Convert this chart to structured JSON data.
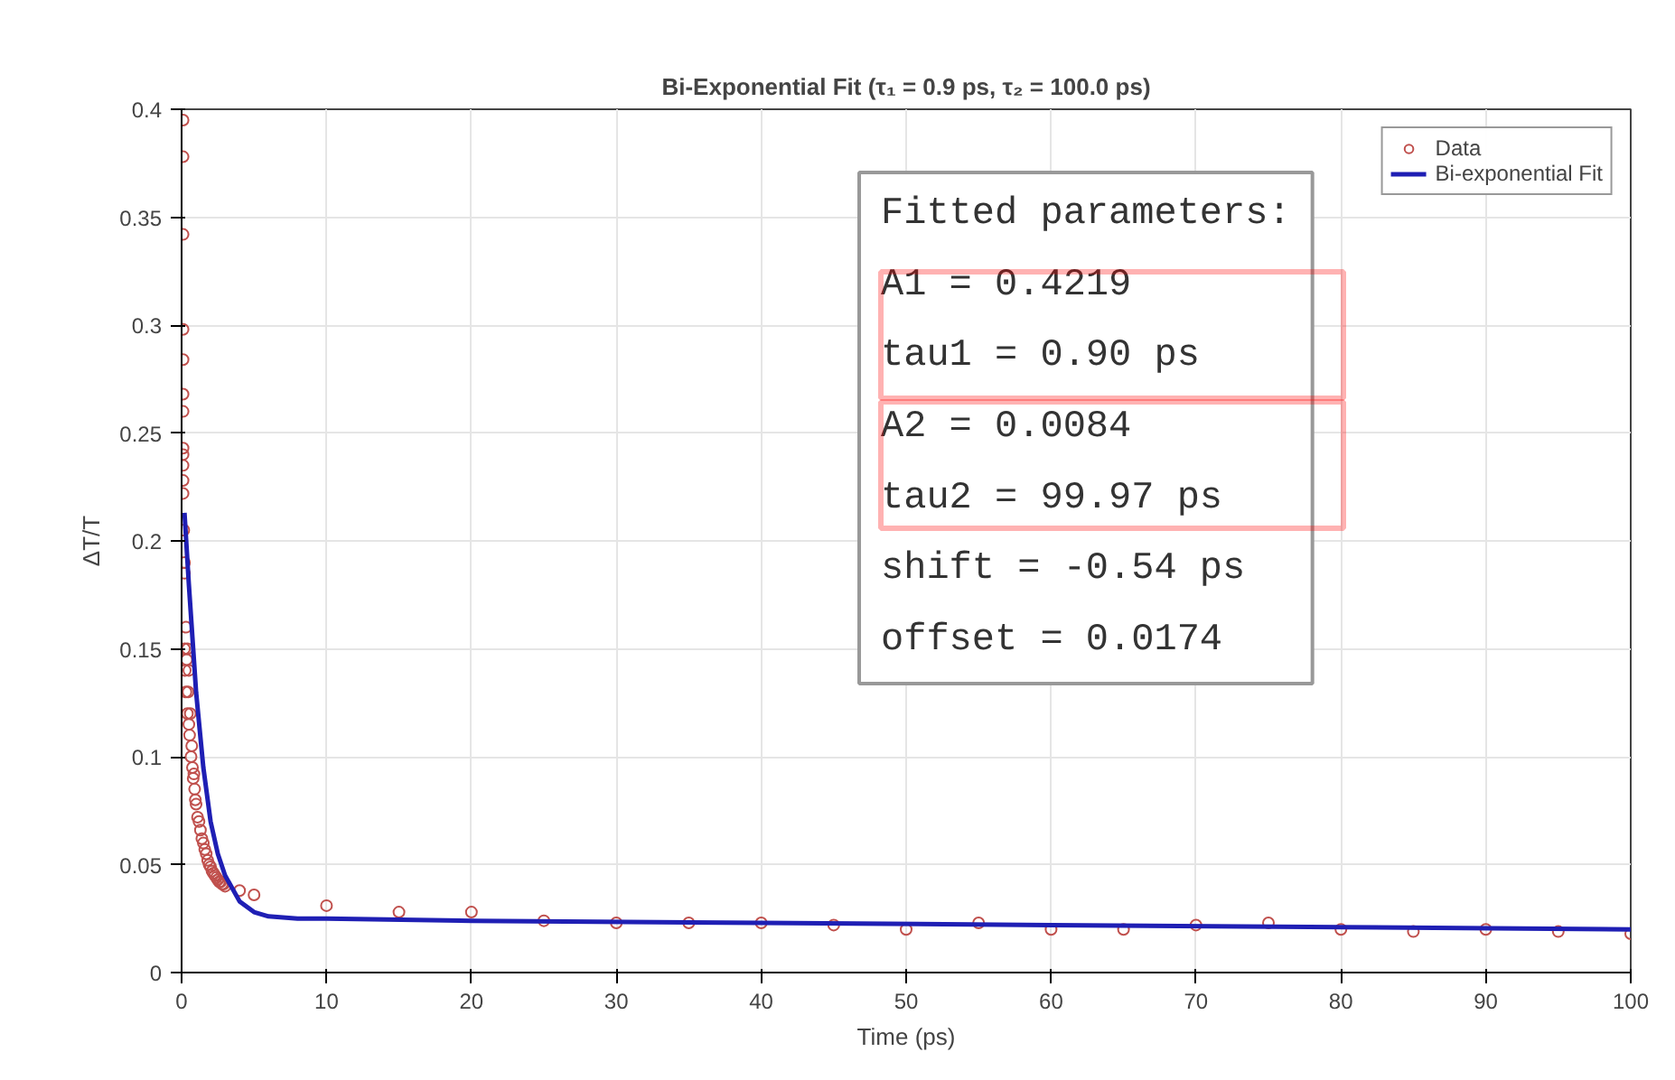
{
  "chart_data": {
    "type": "scatter",
    "title": "Bi-Exponential Fit (τ₁ = 0.9 ps, τ₂ = 100.0 ps)",
    "xlabel": "Time (ps)",
    "ylabel": "ΔT/T",
    "xlim": [
      0,
      100
    ],
    "ylim": [
      0,
      0.4
    ],
    "xticks": [
      0,
      10,
      20,
      30,
      40,
      50,
      60,
      70,
      80,
      90,
      100
    ],
    "yticks": [
      0,
      0.05,
      0.1,
      0.15,
      0.2,
      0.25,
      0.3,
      0.35,
      0.4
    ],
    "grid": true,
    "legend": "top right",
    "annotations": [
      "Fitted parameters:",
      "A1 = 0.4219",
      "tau1 = 0.90 ps",
      "A2 = 0.0084",
      "tau2 = 99.97 ps",
      "shift = -0.54 ps",
      "offset = 0.0174"
    ],
    "series": [
      {
        "name": "Data",
        "marker": "circle",
        "color": "#c0504d",
        "x": [
          0.1,
          0.1,
          0.1,
          0.1,
          0.1,
          0.1,
          0.1,
          0.1,
          0.1,
          0.1,
          0.1,
          0.1,
          0.15,
          0.2,
          0.2,
          0.2,
          0.25,
          0.3,
          0.3,
          0.35,
          0.4,
          0.4,
          0.45,
          0.5,
          0.5,
          0.55,
          0.6,
          0.65,
          0.7,
          0.75,
          0.8,
          0.85,
          0.9,
          0.95,
          1.0,
          1.1,
          1.2,
          1.3,
          1.4,
          1.5,
          1.6,
          1.7,
          1.8,
          1.9,
          2.0,
          2.1,
          2.2,
          2.3,
          2.4,
          2.5,
          2.6,
          2.7,
          2.8,
          2.9,
          3.0,
          4,
          5,
          10,
          15,
          20,
          25,
          30,
          35,
          40,
          45,
          50,
          55,
          60,
          65,
          70,
          75,
          80,
          85,
          90,
          95,
          100
        ],
        "values": [
          0.395,
          0.378,
          0.342,
          0.298,
          0.284,
          0.268,
          0.26,
          0.243,
          0.24,
          0.235,
          0.228,
          0.222,
          0.205,
          0.19,
          0.185,
          0.15,
          0.14,
          0.16,
          0.13,
          0.145,
          0.12,
          0.15,
          0.13,
          0.115,
          0.14,
          0.11,
          0.12,
          0.1,
          0.105,
          0.095,
          0.09,
          0.092,
          0.085,
          0.08,
          0.078,
          0.072,
          0.07,
          0.066,
          0.062,
          0.06,
          0.057,
          0.055,
          0.052,
          0.05,
          0.049,
          0.047,
          0.046,
          0.045,
          0.044,
          0.043,
          0.042,
          0.042,
          0.041,
          0.041,
          0.04,
          0.038,
          0.036,
          0.031,
          0.028,
          0.028,
          0.024,
          0.023,
          0.023,
          0.023,
          0.022,
          0.02,
          0.023,
          0.02,
          0.02,
          0.022,
          0.023,
          0.02,
          0.019,
          0.02,
          0.019,
          0.018
        ]
      },
      {
        "name": "Bi-exponential Fit",
        "type": "line",
        "marker": "none",
        "line_style": "solid",
        "color": "#1f1fb4",
        "x": [
          0.2,
          0.5,
          1,
          1.5,
          2,
          2.5,
          3,
          4,
          5,
          6,
          8,
          10,
          20,
          40,
          60,
          80,
          100
        ],
        "values": [
          0.213,
          0.18,
          0.13,
          0.095,
          0.07,
          0.055,
          0.045,
          0.033,
          0.028,
          0.026,
          0.025,
          0.025,
          0.024,
          0.023,
          0.022,
          0.021,
          0.02
        ]
      }
    ]
  }
}
